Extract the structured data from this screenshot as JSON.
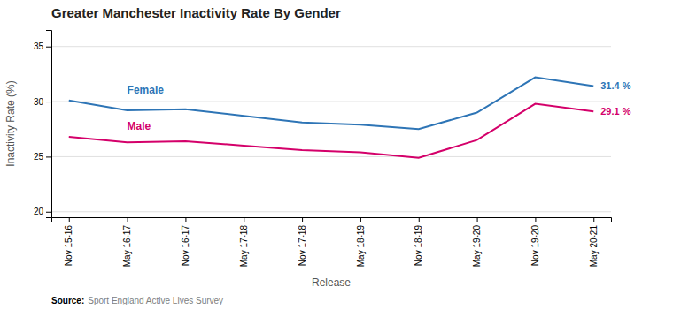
{
  "chart_data": {
    "type": "line",
    "title": "Greater Manchester Inactivity Rate By Gender",
    "xlabel": "Release",
    "ylabel": "Inactivity Rate (%)",
    "annotations": [
      "Source:",
      "Sport England Active Lives Survey"
    ],
    "categories": [
      "Nov 15-16",
      "May 16-17",
      "Nov 16-17",
      "May 17-18",
      "Nov 17-18",
      "May 18-19",
      "Nov 18-19",
      "May 19-20",
      "Nov 19-20",
      "May 20-21"
    ],
    "series": [
      {
        "name": "Female",
        "color": "#2E75B6",
        "values": [
          30.1,
          29.2,
          29.3,
          28.7,
          28.1,
          27.9,
          27.5,
          29.0,
          32.2,
          31.4
        ],
        "value_labels": [
          null,
          null,
          null,
          null,
          null,
          null,
          null,
          null,
          null,
          "31.4 %"
        ]
      },
      {
        "name": "Male",
        "color": "#D4006A",
        "values": [
          26.8,
          26.3,
          26.4,
          26.0,
          25.6,
          25.4,
          24.9,
          26.5,
          29.8,
          29.1
        ],
        "value_labels": [
          null,
          null,
          null,
          null,
          null,
          null,
          null,
          null,
          null,
          "29.1 %"
        ]
      }
    ],
    "ylim": [
      19.5,
      36.5
    ],
    "yticks": [
      20,
      25,
      30,
      35
    ],
    "grid": true
  }
}
